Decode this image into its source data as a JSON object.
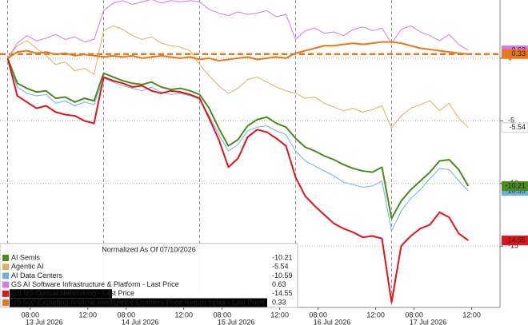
{
  "chart_data": {
    "type": "line",
    "legend_title": "Normalized As Of 07/10/2026",
    "x": [
      0,
      1,
      2,
      3,
      4,
      5,
      6,
      7,
      8,
      9,
      10,
      11,
      12,
      13,
      14,
      15,
      16,
      17,
      18,
      19,
      20,
      21,
      22,
      23,
      24,
      25,
      26,
      27,
      28,
      29,
      30,
      31,
      32,
      33,
      34,
      35,
      36,
      37,
      38,
      39,
      40,
      41,
      42,
      43,
      44,
      45,
      46,
      47,
      48
    ],
    "xlim": [
      -0.8,
      51.3
    ],
    "xticks": [
      {
        "value": 2.35,
        "label": "08:00"
      },
      {
        "value": 8.35,
        "label": "12:00"
      },
      {
        "value": 12.35,
        "label": "08:00"
      },
      {
        "value": 18.35,
        "label": "12:00"
      },
      {
        "value": 22.35,
        "label": "08:00"
      },
      {
        "value": 28.35,
        "label": "12:00"
      },
      {
        "value": 32.35,
        "label": "08:00"
      },
      {
        "value": 38.35,
        "label": "12:00"
      },
      {
        "value": 42.35,
        "label": "08:00"
      },
      {
        "value": 48.35,
        "label": "12:00"
      }
    ],
    "date_labels": [
      {
        "value": 3.8,
        "label": "13 Jul 2026"
      },
      {
        "value": 13.8,
        "label": "14 Jul 2026"
      },
      {
        "value": 23.8,
        "label": "15 Jul 2026"
      },
      {
        "value": 33.8,
        "label": "16 Jul 2026"
      },
      {
        "value": 43.8,
        "label": "17 Jul 2026"
      }
    ],
    "day_breaks": [
      0,
      10,
      20,
      30,
      40
    ],
    "ylim": [
      -19.9,
      4.65
    ],
    "yticks": [
      0,
      -5,
      -10,
      -15
    ],
    "grid": true,
    "series": [
      {
        "name": "AI Semis",
        "color": "#4a8c1c",
        "values": [
          0,
          -2,
          -2.4,
          -2.7,
          -2.6,
          -3.2,
          -3.1,
          -3.5,
          -3.2,
          -3.4,
          -1.2,
          -1.5,
          -1.8,
          -2,
          -2.1,
          -1.9,
          -2.3,
          -2.5,
          -2.4,
          -2.6,
          -2.9,
          -4,
          -5.6,
          -7,
          -6.5,
          -5.4,
          -4.9,
          -4.7,
          -5.2,
          -5.5,
          -6.4,
          -7.1,
          -7.4,
          -7.8,
          -8.1,
          -8.5,
          -8.8,
          -9,
          -9.1,
          -8.7,
          -12.8,
          -11.4,
          -10.5,
          -9.8,
          -9.1,
          -8.2,
          -8.1,
          -8.9,
          -10.21
        ]
      },
      {
        "name": "Agentic AI",
        "color": "#d9b25c",
        "values": [
          0,
          1,
          1.4,
          0.8,
          0.2,
          -0.5,
          -0.3,
          -1,
          -0.8,
          -1.3,
          2.2,
          2.6,
          2.3,
          1.8,
          1.5,
          1.7,
          1.2,
          1,
          0.9,
          0.6,
          -0.5,
          -1.4,
          -2.2,
          -2.8,
          -2.4,
          -1.7,
          -1.5,
          -1.9,
          -2.3,
          -2.6,
          -2.8,
          -3.2,
          -3.1,
          -3.6,
          -3.9,
          -4.2,
          -4,
          -4.3,
          -4.1,
          -3.8,
          -5.6,
          -4.6,
          -4,
          -3.7,
          -3.4,
          -4.2,
          -3.6,
          -4.8,
          -5.54
        ]
      },
      {
        "name": "AI Data Centers",
        "color": "#6db0dc",
        "values": [
          0,
          -2.3,
          -2.8,
          -3,
          -2.9,
          -3.6,
          -3.4,
          -3.8,
          -3.5,
          -3.7,
          -1.6,
          -1.9,
          -2.2,
          -2.4,
          -2.6,
          -2.3,
          -2.7,
          -2.9,
          -2.8,
          -3,
          -3.3,
          -4.6,
          -6.1,
          -7.4,
          -6.9,
          -5.8,
          -5.5,
          -5.4,
          -5.8,
          -6.1,
          -7.4,
          -8.2,
          -8.6,
          -9,
          -9.4,
          -9.9,
          -10.1,
          -10.3,
          -10.2,
          -9.8,
          -13.8,
          -12.2,
          -11.2,
          -10.5,
          -9.6,
          -8.8,
          -8.9,
          -9.8,
          -10.59
        ]
      },
      {
        "name": "GS AI Software Infrastructure & Platform - Last Price",
        "color": "#d47ae6",
        "values": [
          0,
          1.2,
          1.8,
          1.4,
          1.6,
          1.9,
          1.5,
          1.7,
          1.3,
          1.5,
          3.8,
          4.4,
          4.6,
          4.3,
          4.5,
          4.7,
          4.4,
          4.6,
          4.5,
          4.6,
          4.5,
          3.9,
          3.6,
          3.4,
          3.7,
          3.5,
          3.6,
          3.8,
          3.3,
          3.5,
          1.5,
          2.2,
          2.4,
          2,
          2.1,
          1.8,
          2.3,
          2.5,
          2.2,
          2.4,
          1.2,
          2.3,
          2.6,
          2.1,
          1.8,
          1.4,
          1.9,
          1.1,
          0.63
        ]
      },
      {
        "name": "GS US Optical Networking - Last Price",
        "color": "#e0141a",
        "values": [
          0,
          -3,
          -3.5,
          -4,
          -3.8,
          -4.3,
          -4.5,
          -4.6,
          -5,
          -5.2,
          -1.5,
          -1.8,
          -2,
          -2.3,
          -2.2,
          -2.6,
          -2.8,
          -2.6,
          -2.7,
          -2.9,
          -3.2,
          -4.8,
          -6.5,
          -8.7,
          -8,
          -6.3,
          -5.7,
          -5.9,
          -6.4,
          -7,
          -9.5,
          -11,
          -11.8,
          -12.5,
          -13.2,
          -13.6,
          -13.9,
          -14.3,
          -14.2,
          -14.4,
          -19.5,
          -15,
          -14.2,
          -13.6,
          -13.3,
          -12.3,
          -12.7,
          -14,
          -14.55
        ]
      },
      {
        "name": "US 500 Excluding Artificial Intelligence Enablers Price Return Index - Last Price",
        "color": "#e8781c",
        "values": [
          0,
          0.5,
          0.6,
          0.4,
          0.5,
          0.3,
          0.4,
          0.2,
          0.3,
          0.2,
          0.1,
          0.2,
          0.1,
          0.2,
          0,
          0.1,
          0.2,
          0.1,
          0,
          0.1,
          -0.1,
          0,
          -0.2,
          -0.1,
          0,
          0.1,
          -0.1,
          0,
          0.1,
          0,
          0.4,
          0.6,
          0.8,
          1,
          1,
          1.1,
          1.2,
          1.1,
          1.2,
          1.3,
          1.3,
          1.2,
          1,
          0.8,
          0.7,
          0.6,
          0.5,
          0.4,
          0.33
        ]
      }
    ]
  }
}
